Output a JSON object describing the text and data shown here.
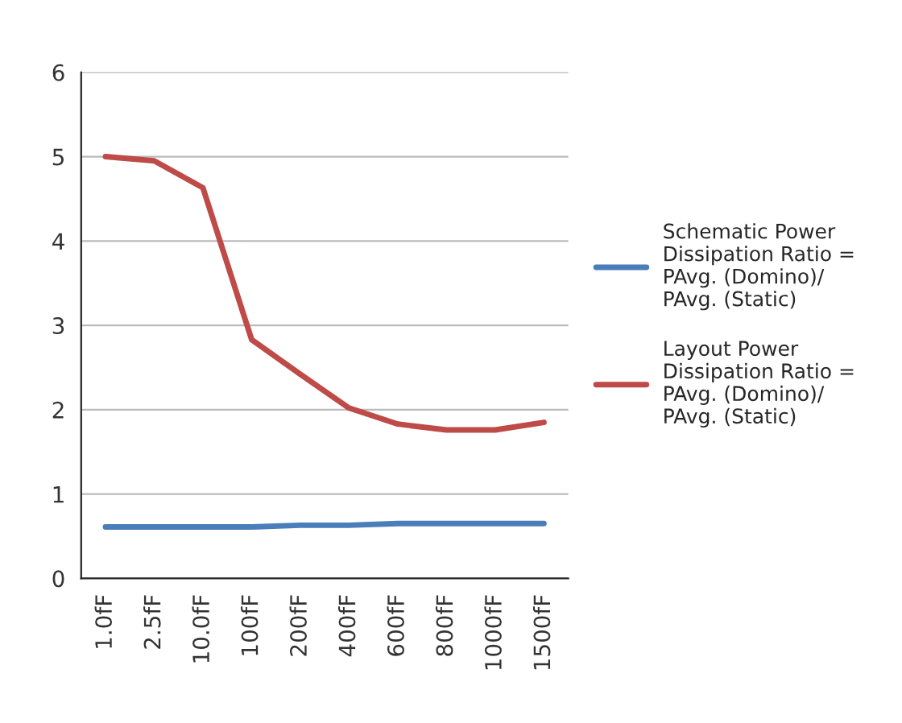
{
  "chart_data": {
    "type": "line",
    "categories": [
      "1.0fF",
      "2.5fF",
      "10.0fF",
      "100fF",
      "200fF",
      "400fF",
      "600fF",
      "800fF",
      "1000fF",
      "1500fF"
    ],
    "series": [
      {
        "name": "Schematic Power\nDissipation Ratio =\nPAvg. (Domino)/\nPAvg. (Static)",
        "color": "#4a7ebb",
        "values": [
          0.61,
          0.61,
          0.61,
          0.61,
          0.63,
          0.63,
          0.65,
          0.65,
          0.65,
          0.65
        ]
      },
      {
        "name": "Layout Power\nDissipation Ratio =\nPAvg. (Domino)/\nPAvg. (Static)",
        "color": "#be4b48",
        "values": [
          5.0,
          4.95,
          4.63,
          2.83,
          2.42,
          2.02,
          1.83,
          1.76,
          1.76,
          1.85
        ]
      }
    ],
    "ylim": [
      0,
      6
    ],
    "yticks": [
      0,
      1,
      2,
      3,
      4,
      5,
      6
    ],
    "grid": "y",
    "legend": "right"
  }
}
